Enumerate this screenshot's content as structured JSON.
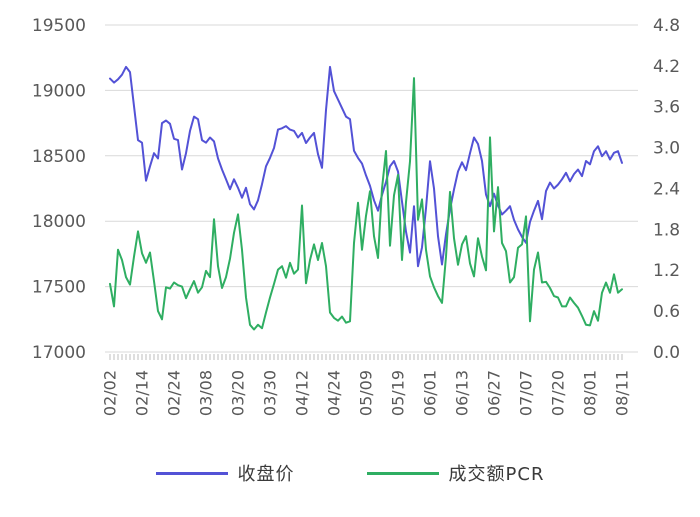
{
  "colors": {
    "close_line": "#5352d6",
    "pcr_line": "#2fae62",
    "grid": "#d9d9d9",
    "axis_text": "#595959",
    "minor_tick": "#c9c9c9",
    "legend_text": "#3a3a3a",
    "background": "#ffffff"
  },
  "legend": {
    "close_label": "收盘价",
    "pcr_label": "成交额PCR"
  },
  "chart_data": {
    "type": "line",
    "title": "",
    "xlabel": "",
    "ylabel_left": "",
    "ylabel_right": "",
    "grid": "horizontal",
    "legend_position": "bottom",
    "x_tick_labels": [
      "02/02",
      "02/14",
      "02/24",
      "03/08",
      "03/20",
      "03/30",
      "04/12",
      "04/24",
      "05/09",
      "05/19",
      "06/01",
      "06/13",
      "06/27",
      "07/07",
      "07/20",
      "08/01",
      "08/11"
    ],
    "x_tick_every": 8,
    "n_points": 129,
    "left_axis": {
      "ticks": [
        19500,
        19000,
        18500,
        18000,
        17500,
        17000
      ],
      "min": 17000,
      "max": 19500
    },
    "right_axis": {
      "ticks": [
        4.8,
        4.2,
        3.6,
        3.0,
        2.4,
        1.8,
        1.2,
        0.6,
        0.0
      ],
      "min": 0.0,
      "max": 4.8
    },
    "series": [
      {
        "name": "收盘价",
        "axis": "left",
        "color": "#5352d6",
        "values": [
          19090,
          19060,
          19085,
          19120,
          19180,
          19140,
          18880,
          18620,
          18600,
          18310,
          18420,
          18520,
          18480,
          18750,
          18770,
          18745,
          18630,
          18620,
          18395,
          18520,
          18690,
          18800,
          18780,
          18620,
          18600,
          18640,
          18610,
          18480,
          18395,
          18320,
          18245,
          18320,
          18255,
          18180,
          18255,
          18130,
          18090,
          18160,
          18283,
          18420,
          18484,
          18560,
          18700,
          18710,
          18727,
          18700,
          18690,
          18640,
          18675,
          18598,
          18640,
          18675,
          18512,
          18408,
          18850,
          19180,
          18995,
          18930,
          18865,
          18800,
          18780,
          18538,
          18484,
          18440,
          18350,
          18270,
          18160,
          18080,
          18200,
          18300,
          18420,
          18460,
          18380,
          18150,
          17920,
          17760,
          18115,
          17656,
          17800,
          18100,
          18459,
          18250,
          17885,
          17669,
          17900,
          18090,
          18243,
          18380,
          18450,
          18390,
          18520,
          18640,
          18590,
          18460,
          18204,
          18115,
          18210,
          18120,
          18051,
          18080,
          18115,
          18010,
          17937,
          17880,
          17835,
          17995,
          18080,
          18155,
          18015,
          18230,
          18295,
          18250,
          18280,
          18320,
          18370,
          18305,
          18360,
          18395,
          18345,
          18460,
          18435,
          18535,
          18573,
          18497,
          18535,
          18472,
          18523,
          18535,
          18446
        ]
      },
      {
        "name": "成交额PCR",
        "axis": "right",
        "color": "#2fae62",
        "values": [
          1.0,
          0.67,
          1.5,
          1.35,
          1.1,
          0.99,
          1.4,
          1.77,
          1.45,
          1.31,
          1.46,
          1.04,
          0.6,
          0.48,
          0.95,
          0.93,
          1.02,
          0.98,
          0.96,
          0.79,
          0.92,
          1.04,
          0.87,
          0.95,
          1.19,
          1.1,
          1.95,
          1.26,
          0.94,
          1.1,
          1.37,
          1.75,
          2.02,
          1.5,
          0.8,
          0.4,
          0.33,
          0.4,
          0.35,
          0.58,
          0.8,
          1.0,
          1.21,
          1.26,
          1.09,
          1.31,
          1.15,
          1.21,
          2.15,
          1.01,
          1.35,
          1.58,
          1.35,
          1.6,
          1.26,
          0.58,
          0.5,
          0.46,
          0.52,
          0.43,
          0.45,
          1.6,
          2.19,
          1.5,
          2.0,
          2.36,
          1.7,
          1.38,
          2.4,
          2.95,
          1.56,
          2.3,
          2.6,
          1.35,
          2.2,
          2.8,
          4.02,
          1.94,
          2.24,
          1.5,
          1.11,
          0.95,
          0.82,
          0.72,
          1.4,
          2.35,
          1.67,
          1.28,
          1.58,
          1.7,
          1.3,
          1.11,
          1.67,
          1.4,
          1.2,
          3.15,
          1.77,
          2.42,
          1.6,
          1.48,
          1.02,
          1.1,
          1.53,
          1.58,
          1.99,
          0.45,
          1.21,
          1.46,
          1.02,
          1.03,
          0.94,
          0.82,
          0.8,
          0.67,
          0.67,
          0.8,
          0.72,
          0.65,
          0.53,
          0.4,
          0.39,
          0.6,
          0.46,
          0.87,
          1.02,
          0.87,
          1.14,
          0.87,
          0.92
        ]
      }
    ]
  }
}
